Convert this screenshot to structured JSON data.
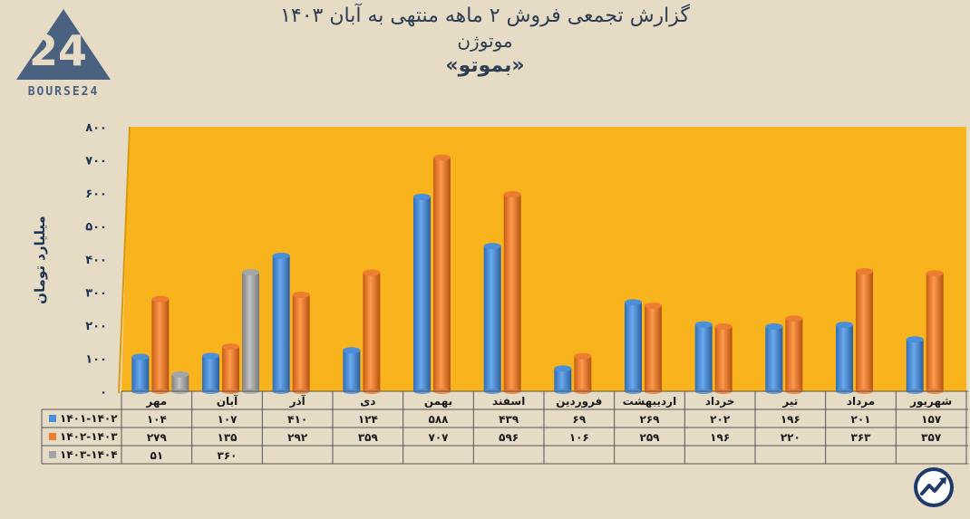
{
  "header": {
    "line1": "گزارش تجمعی فروش ۲ ماهه منتهی به آبان ۱۴۰۳",
    "line2": "موتوژن",
    "line3": "«بموتو»"
  },
  "logo": {
    "text": "BOURSE24",
    "mark": "24"
  },
  "badge_icon": "trend-up-icon",
  "chart_data": {
    "type": "bar",
    "ylabel": "میلیارد تومان",
    "ylim": [
      0,
      800
    ],
    "yticks": [
      "۰",
      "۱۰۰",
      "۲۰۰",
      "۳۰۰",
      "۴۰۰",
      "۵۰۰",
      "۶۰۰",
      "۷۰۰",
      "۸۰۰"
    ],
    "grid": false,
    "background": "#f9b31c",
    "categories": [
      "مهر",
      "آبان",
      "آذر",
      "دی",
      "بهمن",
      "اسفند",
      "فروردین",
      "اردیبهشت",
      "خرداد",
      "تیر",
      "مرداد",
      "شهریور"
    ],
    "series": [
      {
        "name": "۱۴۰۱-۱۴۰۲",
        "color": "#4a8fd8",
        "values": [
          104,
          107,
          410,
          124,
          588,
          439,
          69,
          269,
          202,
          196,
          201,
          157
        ],
        "labels": [
          "۱۰۴",
          "۱۰۷",
          "۴۱۰",
          "۱۲۴",
          "۵۸۸",
          "۴۳۹",
          "۶۹",
          "۲۶۹",
          "۲۰۲",
          "۱۹۶",
          "۲۰۱",
          "۱۵۷"
        ]
      },
      {
        "name": "۱۴۰۲-۱۴۰۳",
        "color": "#ed7d31",
        "values": [
          279,
          135,
          292,
          359,
          707,
          596,
          106,
          259,
          196,
          220,
          363,
          357
        ],
        "labels": [
          "۲۷۹",
          "۱۳۵",
          "۲۹۲",
          "۳۵۹",
          "۷۰۷",
          "۵۹۶",
          "۱۰۶",
          "۲۵۹",
          "۱۹۶",
          "۲۲۰",
          "۳۶۳",
          "۳۵۷"
        ]
      },
      {
        "name": "۱۴۰۳-۱۴۰۴",
        "color": "#a5a5a5",
        "values": [
          51,
          360,
          null,
          null,
          null,
          null,
          null,
          null,
          null,
          null,
          null,
          null
        ],
        "labels": [
          "۵۱",
          "۳۶۰",
          "",
          "",
          "",
          "",
          "",
          "",
          "",
          "",
          "",
          ""
        ]
      }
    ]
  }
}
